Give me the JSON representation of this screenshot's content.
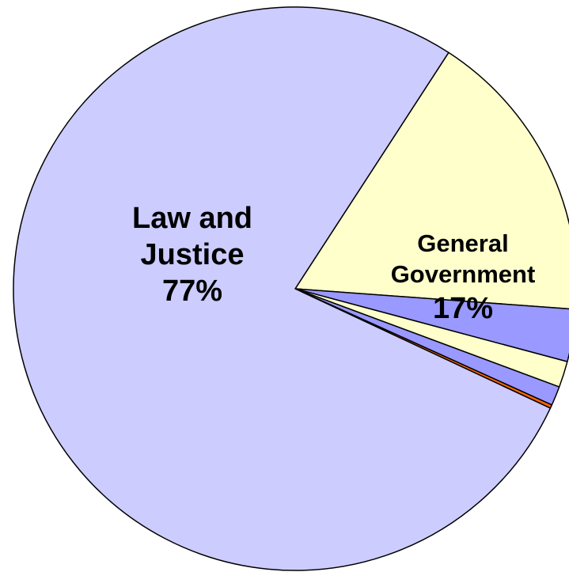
{
  "chart_data": {
    "type": "pie",
    "slices": [
      {
        "label_lines": [
          "General",
          "Government"
        ],
        "value_text": "17%",
        "value": 17,
        "color": "#ffffcc"
      },
      {
        "label_lines": [],
        "value_text": "",
        "value": 3,
        "color": "#9999ff"
      },
      {
        "label_lines": [],
        "value_text": "",
        "value": 1.5,
        "color": "#ffffcc"
      },
      {
        "label_lines": [],
        "value_text": "",
        "value": 1.1,
        "color": "#9999ff"
      },
      {
        "label_lines": [],
        "value_text": "",
        "value": 0.2,
        "color": "#ff6600"
      },
      {
        "label_lines": [
          "Law and",
          "Justice"
        ],
        "value_text": "77%",
        "value": 77.2,
        "color": "#ccccff"
      }
    ],
    "start_angle_deg": -57,
    "stroke_color": "#000000",
    "title": "",
    "legend": "none"
  }
}
